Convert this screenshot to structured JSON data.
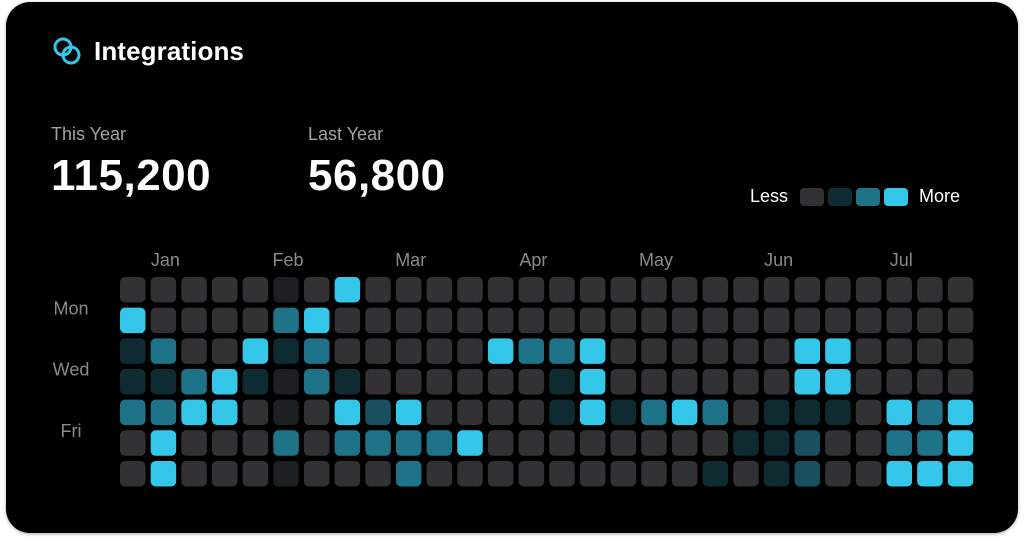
{
  "header": {
    "title": "Integrations",
    "icon": "linked-rings-icon"
  },
  "stats": {
    "this_year": {
      "label": "This Year",
      "value": "115,200"
    },
    "last_year": {
      "label": "Last Year",
      "value": "56,800"
    }
  },
  "legend": {
    "less_label": "Less",
    "more_label": "More"
  },
  "colors": {
    "background": "#000000",
    "accent": "#35c7ea",
    "levels": [
      "#323234",
      "#1d2023",
      "#0f2b32",
      "#185060",
      "#1f7388",
      "#35c7ea"
    ],
    "legend_swatches": [
      "#323234",
      "#0f2b32",
      "#1f7388",
      "#35c7ea"
    ]
  },
  "chart_data": {
    "type": "heatmap",
    "title": "Integrations",
    "x_tick_labels": [
      "Jan",
      "Feb",
      "Mar",
      "Apr",
      "May",
      "Jun",
      "Jul"
    ],
    "x_tick_columns": [
      1,
      5,
      9,
      13,
      17,
      21,
      25
    ],
    "y_tick_labels": [
      "Mon",
      "Wed",
      "Fri"
    ],
    "y_tick_rows": [
      1,
      3,
      5
    ],
    "rows": 7,
    "columns": 28,
    "scale": "intensity level 0 (none) to 5 (most)",
    "values": [
      [
        0,
        0,
        0,
        0,
        0,
        1,
        0,
        5,
        0,
        0,
        0,
        0,
        0,
        0,
        0,
        0,
        0,
        0,
        0,
        0,
        0,
        0,
        0,
        0,
        0,
        0,
        0,
        0
      ],
      [
        5,
        0,
        0,
        0,
        0,
        4,
        5,
        0,
        0,
        0,
        0,
        0,
        0,
        0,
        0,
        0,
        0,
        0,
        0,
        0,
        0,
        0,
        0,
        0,
        0,
        0,
        0,
        0
      ],
      [
        2,
        4,
        0,
        0,
        5,
        2,
        4,
        0,
        0,
        0,
        0,
        0,
        5,
        4,
        4,
        5,
        0,
        0,
        0,
        0,
        0,
        0,
        5,
        5,
        0,
        0,
        0,
        0
      ],
      [
        2,
        2,
        4,
        5,
        2,
        1,
        4,
        2,
        0,
        0,
        0,
        0,
        0,
        0,
        2,
        5,
        0,
        0,
        0,
        0,
        0,
        0,
        5,
        5,
        0,
        0,
        0,
        0
      ],
      [
        4,
        4,
        5,
        5,
        0,
        1,
        0,
        5,
        3,
        5,
        0,
        0,
        0,
        0,
        2,
        5,
        2,
        4,
        5,
        4,
        0,
        2,
        2,
        2,
        0,
        5,
        4,
        5
      ],
      [
        0,
        5,
        0,
        0,
        0,
        4,
        0,
        4,
        4,
        4,
        4,
        5,
        0,
        0,
        0,
        0,
        0,
        0,
        0,
        0,
        2,
        2,
        3,
        0,
        0,
        4,
        4,
        5
      ],
      [
        0,
        5,
        0,
        0,
        0,
        1,
        0,
        0,
        0,
        4,
        0,
        0,
        0,
        0,
        0,
        0,
        0,
        0,
        0,
        2,
        0,
        2,
        3,
        0,
        0,
        5,
        5,
        5
      ]
    ]
  }
}
